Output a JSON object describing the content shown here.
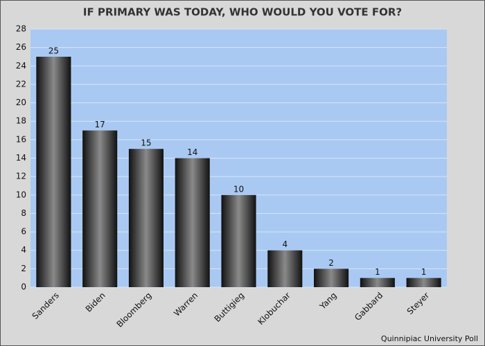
{
  "chart_data": {
    "type": "bar",
    "title": "IF PRIMARY WAS TODAY, WHO WOULD YOU VOTE FOR?",
    "source": "Quinnipiac University Poll",
    "categories": [
      "Sanders",
      "Biden",
      "Bloomberg",
      "Warren",
      "Buttigieg",
      "Klobuchar",
      "Yang",
      "Gabbard",
      "Steyer"
    ],
    "values": [
      25,
      17,
      15,
      14,
      10,
      4,
      2,
      1,
      1
    ],
    "color": "#111111",
    "ylim": [
      0,
      28
    ],
    "yticks": [
      0,
      2,
      4,
      6,
      8,
      10,
      12,
      14,
      16,
      18,
      20,
      22,
      24,
      26,
      28
    ],
    "grid": true
  }
}
